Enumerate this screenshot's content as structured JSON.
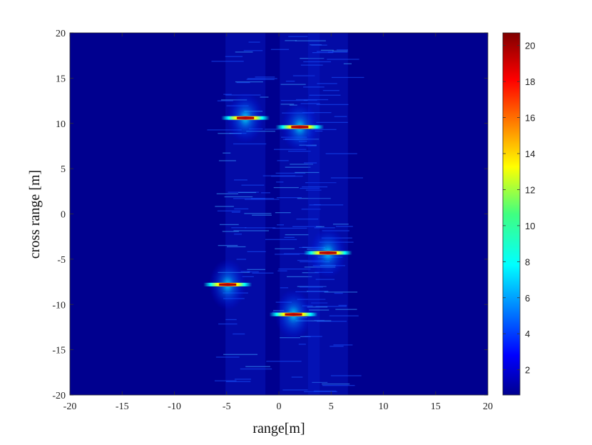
{
  "chart_data": {
    "type": "heatmap",
    "title": "",
    "xlabel": "range[m]",
    "ylabel": "cross range [m]",
    "xlim": [
      -20,
      20
    ],
    "ylim": [
      -20,
      20
    ],
    "xticks": [
      -20,
      -15,
      -10,
      -5,
      0,
      5,
      10,
      15,
      20
    ],
    "yticks": [
      -20,
      -15,
      -10,
      -5,
      0,
      5,
      10,
      15,
      20
    ],
    "colormap": "jet",
    "background_color": "#00008f",
    "colorbar": {
      "min": 0.6,
      "max": 20.7,
      "ticks": [
        2,
        4,
        6,
        8,
        10,
        12,
        14,
        16,
        18,
        20
      ]
    },
    "targets": [
      {
        "x": -3.2,
        "y": 10.6,
        "peak": 20.5
      },
      {
        "x": 2.0,
        "y": 9.6,
        "peak": 20.0
      },
      {
        "x": 4.7,
        "y": -4.3,
        "peak": 19.5
      },
      {
        "x": -4.9,
        "y": -7.8,
        "peak": 20.0
      },
      {
        "x": 1.4,
        "y": -11.1,
        "peak": 20.5
      }
    ],
    "grid": false
  }
}
